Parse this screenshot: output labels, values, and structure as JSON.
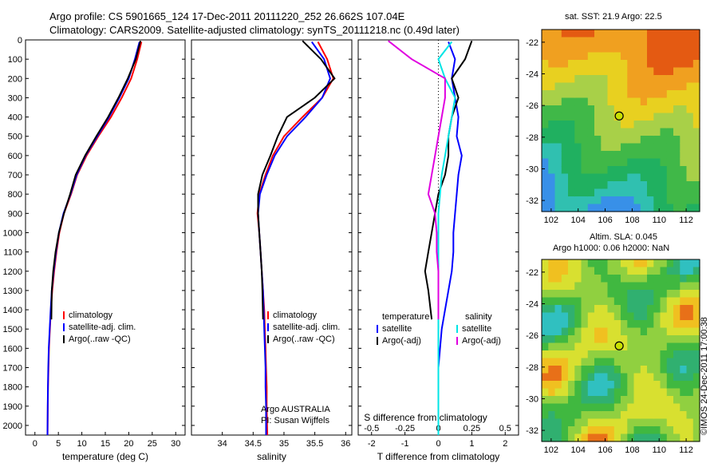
{
  "header": {
    "title_line1": "Argo profile: CS 5901665_124 17-Dec-2011 20111220_252 26.662S 107.04E",
    "title_line2": "Climatology: CARS2009. Satellite-adjusted climatology: synTS_20111218.nc (0.49d later)"
  },
  "colors": {
    "climatology": "#ff0000",
    "satellite": "#0000ff",
    "argo": "#000000",
    "sat_salinity": "#00e5e5",
    "argo_salinity": "#e000e0"
  },
  "depth_axis": {
    "ticks": [
      "0",
      "100",
      "200",
      "300",
      "400",
      "500",
      "600",
      "700",
      "800",
      "900",
      "1000",
      "1100",
      "1200",
      "1300",
      "1400",
      "1500",
      "1600",
      "1700",
      "1800",
      "1900",
      "2000"
    ],
    "range": [
      0,
      2050
    ]
  },
  "chart_data": [
    {
      "type": "line",
      "xlabel": "temperature (deg C)",
      "xticks": [
        "0",
        "5",
        "10",
        "15",
        "20",
        "25",
        "30"
      ],
      "xlim": [
        -2,
        32
      ],
      "ylim": [
        2050,
        0
      ],
      "legend": {
        "items": [
          "climatology",
          "satellite-adj. clim.",
          "Argo(..raw -QC)"
        ]
      },
      "series": [
        {
          "name": "climatology",
          "x": [
            22.7,
            21.8,
            20.5,
            18.5,
            16.2,
            13.5,
            11.0,
            9.0,
            7.7,
            6.2,
            5.2,
            4.6,
            4.1,
            3.7,
            3.4,
            3.2,
            3.0,
            2.9,
            2.8,
            2.75,
            2.7
          ],
          "y": [
            10,
            100,
            200,
            300,
            400,
            500,
            600,
            700,
            800,
            900,
            1000,
            1100,
            1200,
            1300,
            1400,
            1500,
            1600,
            1700,
            1800,
            1900,
            2050
          ]
        },
        {
          "name": "satellite-adj. clim.",
          "x": [
            22.3,
            21.3,
            20.0,
            18.0,
            15.8,
            13.3,
            10.8,
            8.9,
            7.6,
            6.1,
            5.1,
            4.5,
            4.0,
            3.6,
            3.35,
            3.15,
            2.95,
            2.85,
            2.78,
            2.72,
            2.68
          ],
          "y": [
            10,
            100,
            200,
            300,
            400,
            500,
            600,
            700,
            800,
            900,
            1000,
            1100,
            1200,
            1300,
            1400,
            1500,
            1600,
            1700,
            1800,
            1900,
            2050
          ]
        },
        {
          "name": "Argo(..raw -QC)",
          "x": [
            22.5,
            21.5,
            19.8,
            17.8,
            15.6,
            13.1,
            10.7,
            8.7,
            7.5,
            6.2,
            5.1,
            4.4,
            3.9,
            3.6,
            3.5
          ],
          "y": [
            5,
            100,
            200,
            300,
            400,
            500,
            600,
            700,
            800,
            900,
            1000,
            1100,
            1200,
            1300,
            1450
          ]
        }
      ]
    },
    {
      "type": "line",
      "xlabel": "salinity",
      "xticks": [
        "34",
        "34.5",
        "35",
        "35.5",
        "36"
      ],
      "xlim": [
        33.5,
        36.1
      ],
      "ylim": [
        2050,
        0
      ],
      "legend": {
        "items": [
          "climatology",
          "satellite-adj. clim.",
          "Argo(..raw -QC)"
        ]
      },
      "annotations": [
        "Argo AUSTRALIA",
        "PI: Susan Wijffels"
      ],
      "series": [
        {
          "name": "climatology",
          "x": [
            35.55,
            35.7,
            35.8,
            35.62,
            35.3,
            35.0,
            34.82,
            34.7,
            34.6,
            34.57,
            34.6,
            34.62,
            34.64,
            34.66,
            34.68,
            34.69,
            34.7,
            34.71,
            34.72,
            34.72,
            34.73
          ],
          "y": [
            10,
            100,
            200,
            300,
            400,
            500,
            600,
            700,
            800,
            900,
            1000,
            1100,
            1200,
            1300,
            1400,
            1500,
            1600,
            1700,
            1800,
            1900,
            2050
          ]
        },
        {
          "name": "satellite-adj. clim.",
          "x": [
            35.45,
            35.65,
            35.75,
            35.62,
            35.35,
            35.05,
            34.85,
            34.72,
            34.61,
            34.58,
            34.6,
            34.62,
            34.64,
            34.66,
            34.67,
            34.68,
            34.69,
            34.7,
            34.7,
            34.71,
            34.71
          ],
          "y": [
            10,
            100,
            200,
            300,
            400,
            500,
            600,
            700,
            800,
            900,
            1000,
            1100,
            1200,
            1300,
            1400,
            1500,
            1600,
            1700,
            1800,
            1900,
            2050
          ]
        },
        {
          "name": "Argo(..raw -QC)",
          "x": [
            35.3,
            35.6,
            35.82,
            35.5,
            35.05,
            34.9,
            34.78,
            34.65,
            34.58,
            34.58,
            34.6,
            34.62,
            34.64,
            34.65,
            34.66
          ],
          "y": [
            5,
            100,
            200,
            300,
            400,
            500,
            600,
            700,
            800,
            900,
            1000,
            1100,
            1200,
            1300,
            1450
          ]
        }
      ]
    },
    {
      "type": "line",
      "xlabel": "T difference from climatology",
      "top_axis_label": "S difference from climatology",
      "xticks": [
        "-2",
        "-1",
        "0",
        "1",
        "2"
      ],
      "top_xticks": [
        "-0.5",
        "-0.25",
        "0",
        "0.25",
        "0.5"
      ],
      "xlim": [
        -2.4,
        2.4
      ],
      "ylim": [
        2050,
        0
      ],
      "legend": {
        "temperature_heading": "temperature",
        "salinity_heading": "salinity",
        "items": [
          "satellite",
          "Argo(-adj)",
          "satellite",
          "Argo(-adj)"
        ]
      },
      "series": [
        {
          "name": "temperature satellite",
          "x": [
            0.3,
            0.5,
            0.4,
            0.5,
            0.6,
            0.55,
            0.7,
            0.6,
            0.55,
            0.5,
            0.45,
            0.45,
            0.4,
            0.3,
            0.2,
            0.1,
            0.05,
            0.0,
            0.0,
            0.0,
            0.0
          ],
          "y": [
            10,
            100,
            200,
            300,
            400,
            500,
            600,
            700,
            800,
            900,
            1000,
            1100,
            1200,
            1300,
            1400,
            1500,
            1600,
            1700,
            1800,
            1900,
            2050
          ]
        },
        {
          "name": "temperature Argo(-adj)",
          "x": [
            1.0,
            0.8,
            0.4,
            0.6,
            0.4,
            0.3,
            0.3,
            0.2,
            0.0,
            -0.1,
            -0.2,
            -0.3,
            -0.4,
            -0.3,
            -0.2
          ],
          "y": [
            5,
            100,
            200,
            300,
            400,
            500,
            600,
            700,
            800,
            900,
            1000,
            1100,
            1200,
            1300,
            1450
          ]
        },
        {
          "name": "salinity satellite",
          "x": [
            0.4,
            0.0,
            0.2,
            0.5,
            0.4,
            0.3,
            0.2,
            0.1,
            0.05,
            0.0,
            0.0,
            0.0,
            0.0,
            0.0,
            0.0,
            0.0,
            0.0,
            0.0,
            0.0,
            0.0,
            0.0
          ],
          "y": [
            10,
            100,
            200,
            300,
            400,
            500,
            600,
            700,
            800,
            900,
            1000,
            1100,
            1200,
            1300,
            1400,
            1500,
            1600,
            1700,
            1800,
            1900,
            2050
          ]
        },
        {
          "name": "salinity Argo(-adj)",
          "x": [
            -1.5,
            -0.8,
            0.2,
            0.2,
            0.1,
            0.0,
            -0.1,
            -0.2,
            -0.3,
            -0.1,
            -0.05,
            -0.05,
            0.0,
            0.0,
            0.0
          ],
          "y": [
            5,
            100,
            200,
            300,
            400,
            500,
            600,
            700,
            800,
            900,
            1000,
            1100,
            1200,
            1300,
            1450
          ]
        }
      ]
    }
  ],
  "maps": {
    "sst": {
      "title": "sat. SST: 21.9 Argo: 22.5",
      "yticks": [
        "-22",
        "-24",
        "-26",
        "-28",
        "-30",
        "-32"
      ],
      "xticks": [
        "102",
        "104",
        "106",
        "108",
        "110",
        "112"
      ],
      "lon_range": [
        101.3,
        113.0
      ],
      "lat_range": [
        -32.7,
        -21.2
      ],
      "marker": {
        "lon": 107.04,
        "lat": -26.66
      }
    },
    "sla": {
      "title": "Altim. SLA: 0.045",
      "subtitle": "Argo h1000: 0.06 h2000: NaN",
      "yticks": [
        "-22",
        "-24",
        "-26",
        "-28",
        "-30",
        "-32"
      ],
      "xticks": [
        "102",
        "104",
        "106",
        "108",
        "110",
        "112"
      ],
      "lon_range": [
        101.3,
        113.0
      ],
      "lat_range": [
        -32.7,
        -21.2
      ],
      "marker": {
        "lon": 107.04,
        "lat": -26.66
      }
    }
  },
  "stamp": "©IMOS 24-Dec-2011 17:00:38"
}
